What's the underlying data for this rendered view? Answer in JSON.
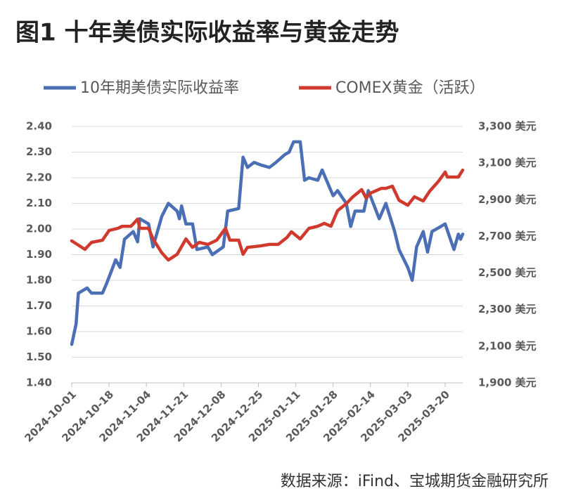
{
  "chart_data": {
    "type": "line",
    "title": "图1  十年美债实际收益率与黄金走势",
    "source": "数据来源：iFind、宝城期货金融研究所",
    "xlim": [
      "2024-10-01",
      "2025-03-28"
    ],
    "xticks": [
      "2024-10-01",
      "2024-10-18",
      "2024-11-04",
      "2024-11-21",
      "2024-12-08",
      "2024-12-25",
      "2025-01-11",
      "2025-01-28",
      "2025-02-14",
      "2025-03-03",
      "2025-03-20"
    ],
    "ylim": [
      1.4,
      2.4
    ],
    "yticks": [
      {
        "value": 1.4,
        "label": "1.40"
      },
      {
        "value": 1.5,
        "label": "1.50"
      },
      {
        "value": 1.6,
        "label": "1.60"
      },
      {
        "value": 1.7,
        "label": "1.70"
      },
      {
        "value": 1.8,
        "label": "1.80"
      },
      {
        "value": 1.9,
        "label": "1.90"
      },
      {
        "value": 2.0,
        "label": "2.00"
      },
      {
        "value": 2.1,
        "label": "2.10"
      },
      {
        "value": 2.2,
        "label": "2.20"
      },
      {
        "value": 2.3,
        "label": "2.30"
      },
      {
        "value": 2.4,
        "label": "2.40"
      }
    ],
    "y2lim": [
      1900,
      3300
    ],
    "y2ticks": [
      {
        "value": 1900,
        "label": "1,900 美元"
      },
      {
        "value": 2100,
        "label": "2,100 美元"
      },
      {
        "value": 2300,
        "label": "2,300 美元"
      },
      {
        "value": 2500,
        "label": "2,500 美元"
      },
      {
        "value": 2700,
        "label": "2,700 美元"
      },
      {
        "value": 2900,
        "label": "2,900 美元"
      },
      {
        "value": 3100,
        "label": "3,100 美元"
      },
      {
        "value": 3300,
        "label": "3,300 美元"
      }
    ],
    "grid": true,
    "legend": "top",
    "series": [
      {
        "name": "10年期美债实际收益率",
        "color": "#4a6fb5",
        "axis": "y",
        "x": [
          "2024-10-01",
          "2024-10-03",
          "2024-10-04",
          "2024-10-08",
          "2024-10-10",
          "2024-10-15",
          "2024-10-17",
          "2024-10-21",
          "2024-10-23",
          "2024-10-25",
          "2024-10-29",
          "2024-10-31",
          "2024-11-01",
          "2024-11-05",
          "2024-11-07",
          "2024-11-11",
          "2024-11-14",
          "2024-11-18",
          "2024-11-19",
          "2024-11-20",
          "2024-11-22",
          "2024-11-25",
          "2024-11-27",
          "2024-12-02",
          "2024-12-04",
          "2024-12-09",
          "2024-12-11",
          "2024-12-16",
          "2024-12-18",
          "2024-12-20",
          "2024-12-23",
          "2024-12-26",
          "2024-12-30",
          "2025-01-02",
          "2025-01-06",
          "2025-01-08",
          "2025-01-10",
          "2025-01-13",
          "2025-01-15",
          "2025-01-17",
          "2025-01-21",
          "2025-01-23",
          "2025-01-28",
          "2025-01-30",
          "2025-02-03",
          "2025-02-05",
          "2025-02-07",
          "2025-02-11",
          "2025-02-13",
          "2025-02-18",
          "2025-02-21",
          "2025-02-25",
          "2025-02-27",
          "2025-03-03",
          "2025-03-05",
          "2025-03-07",
          "2025-03-10",
          "2025-03-12",
          "2025-03-14",
          "2025-03-18",
          "2025-03-20",
          "2025-03-24",
          "2025-03-26",
          "2025-03-27",
          "2025-03-28"
        ],
        "values": [
          1.55,
          1.63,
          1.75,
          1.77,
          1.75,
          1.75,
          1.79,
          1.88,
          1.85,
          1.96,
          1.99,
          1.95,
          2.04,
          2.02,
          1.93,
          2.05,
          2.1,
          2.07,
          2.04,
          2.09,
          2.02,
          2.02,
          1.92,
          1.93,
          1.9,
          1.93,
          2.07,
          2.08,
          2.28,
          2.24,
          2.26,
          2.25,
          2.24,
          2.26,
          2.29,
          2.3,
          2.34,
          2.34,
          2.19,
          2.2,
          2.19,
          2.23,
          2.13,
          2.15,
          2.1,
          2.01,
          2.07,
          2.07,
          2.15,
          2.04,
          2.1,
          1.99,
          1.92,
          1.85,
          1.8,
          1.93,
          1.99,
          1.91,
          1.99,
          2.01,
          2.02,
          1.92,
          1.98,
          1.96,
          1.98
        ]
      },
      {
        "name": "COMEX黄金（活跃）",
        "color": "#d03a2e",
        "axis": "y2",
        "x": [
          "2024-10-01",
          "2024-10-07",
          "2024-10-10",
          "2024-10-15",
          "2024-10-18",
          "2024-10-22",
          "2024-10-24",
          "2024-10-28",
          "2024-10-31",
          "2024-11-01",
          "2024-11-05",
          "2024-11-07",
          "2024-11-11",
          "2024-11-14",
          "2024-11-18",
          "2024-11-22",
          "2024-11-25",
          "2024-11-28",
          "2024-12-02",
          "2024-12-06",
          "2024-12-10",
          "2024-12-12",
          "2024-12-16",
          "2024-12-18",
          "2024-12-20",
          "2024-12-26",
          "2024-12-30",
          "2025-01-03",
          "2025-01-07",
          "2025-01-09",
          "2025-01-13",
          "2025-01-17",
          "2025-01-21",
          "2025-01-24",
          "2025-01-27",
          "2025-01-30",
          "2025-02-03",
          "2025-02-06",
          "2025-02-10",
          "2025-02-12",
          "2025-02-14",
          "2025-02-19",
          "2025-02-21",
          "2025-02-24",
          "2025-02-27",
          "2025-03-03",
          "2025-03-06",
          "2025-03-10",
          "2025-03-13",
          "2025-03-17",
          "2025-03-20",
          "2025-03-21",
          "2025-03-26",
          "2025-03-28"
        ],
        "values": [
          2675,
          2629,
          2667,
          2679,
          2732,
          2744,
          2755,
          2755,
          2794,
          2744,
          2744,
          2686,
          2610,
          2571,
          2602,
          2686,
          2640,
          2667,
          2656,
          2679,
          2744,
          2679,
          2679,
          2602,
          2640,
          2648,
          2656,
          2656,
          2694,
          2725,
          2686,
          2744,
          2755,
          2771,
          2755,
          2840,
          2878,
          2916,
          2955,
          2909,
          2936,
          2962,
          2962,
          2974,
          2897,
          2870,
          2916,
          2893,
          2947,
          3001,
          3051,
          3024,
          3024,
          3062
        ]
      }
    ]
  }
}
